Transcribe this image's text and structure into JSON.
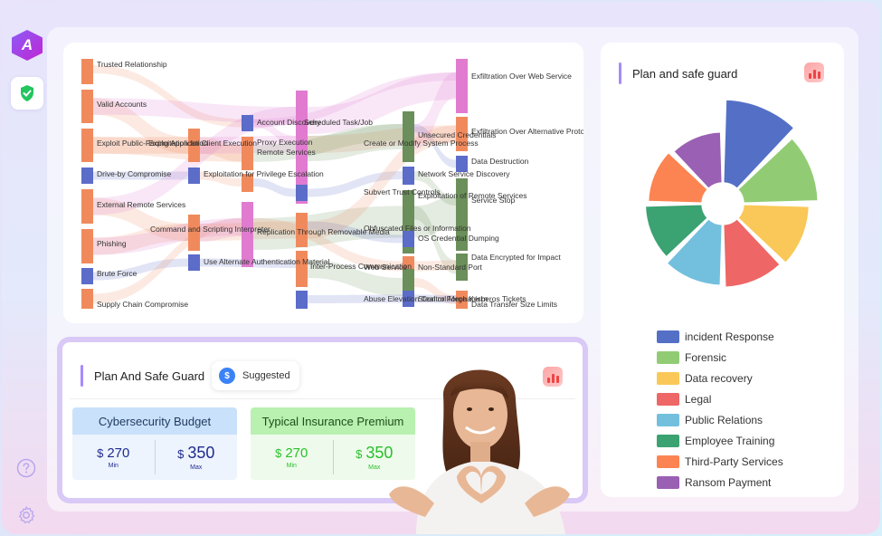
{
  "sidebar": {
    "logo_text": "A",
    "items": [
      {
        "icon": "shield-check-icon"
      },
      {
        "icon": "help-icon"
      },
      {
        "icon": "gear-icon"
      }
    ]
  },
  "sankey": {
    "nodes": [
      {
        "label": "Trusted Relationship",
        "color": "#f08a5d"
      },
      {
        "label": "Valid Accounts",
        "color": "#f08a5d"
      },
      {
        "label": "Exploit Public-Facing Application",
        "color": "#f08a5d"
      },
      {
        "label": "Drive-by Compromise",
        "color": "#5b6cc9"
      },
      {
        "label": "External Remote Services",
        "color": "#f08a5d"
      },
      {
        "label": "Phishing",
        "color": "#f08a5d"
      },
      {
        "label": "Brute Force",
        "color": "#5b6cc9"
      },
      {
        "label": "Supply Chain Compromise",
        "color": "#f08a5d"
      },
      {
        "label": "Exploitation for Client Execution",
        "color": "#f08a5d"
      },
      {
        "label": "Exploitation for Privilege Escalation",
        "color": "#5b6cc9"
      },
      {
        "label": "Command and Scripting Interpreter",
        "color": "#f08a5d"
      },
      {
        "label": "Use Alternate Authentication Material",
        "color": "#5b6cc9"
      },
      {
        "label": "Account Discovery",
        "color": "#5b6cc9"
      },
      {
        "label": "Proxy Execution",
        "color": "#f08a5d"
      },
      {
        "label": "Remote Services",
        "color": "#f08a5d"
      },
      {
        "label": "Replication Through Removable Media",
        "color": "#e07bd0"
      },
      {
        "label": "Scheduled Task/Job",
        "color": "#e07bd0"
      },
      {
        "label": "Create or Modify System Process",
        "color": "#e07bd0"
      },
      {
        "label": "Subvert Trust Controls",
        "color": "#5b6cc9"
      },
      {
        "label": "Obfuscated Files or Information",
        "color": "#f08a5d"
      },
      {
        "label": "Inter-Process Communication",
        "color": "#f08a5d"
      },
      {
        "label": "Abuse Elevation Control Mechanism",
        "color": "#5b6cc9"
      },
      {
        "label": "Unsecured Credentials",
        "color": "#6b8f5a"
      },
      {
        "label": "Network Service Discovery",
        "color": "#5b6cc9"
      },
      {
        "label": "Exploitation of Remote Services",
        "color": "#6b8f5a"
      },
      {
        "label": "OS Credential Dumping",
        "color": "#5b6cc9"
      },
      {
        "label": "Web Service",
        "color": "#f08a5d"
      },
      {
        "label": "Non-Standard Port",
        "color": "#6b8f5a"
      },
      {
        "label": "Steal or Forge Kerberos Tickets",
        "color": "#5b6cc9"
      },
      {
        "label": "Exfiltration Over Web Service",
        "color": "#e07bd0"
      },
      {
        "label": "Exfiltration Over Alternative Protocol",
        "color": "#f08a5d"
      },
      {
        "label": "Data Destruction",
        "color": "#5b6cc9"
      },
      {
        "label": "Service Stop",
        "color": "#6b8f5a"
      },
      {
        "label": "Data Encrypted for Impact",
        "color": "#6b8f5a"
      },
      {
        "label": "Data Transfer Size Limits",
        "color": "#f08a5d"
      }
    ]
  },
  "bottom_card": {
    "title": "Plan And Safe Guard",
    "suggested_label": "Suggested",
    "suggested_icon": "dollar-icon",
    "budget": {
      "title": "Cybersecurity Budget",
      "currency": "$",
      "min_value": "270",
      "min_label": "Min",
      "max_value": "350",
      "max_label": "Max"
    },
    "premium": {
      "title": "Typical Insurance Premium",
      "currency": "$",
      "min_value": "270",
      "min_label": "Min",
      "max_value": "350",
      "max_label": "Max"
    }
  },
  "right_card": {
    "title": "Plan and safe guard",
    "legend": [
      {
        "label": "incident Response",
        "color": "#5470c6"
      },
      {
        "label": "Forensic",
        "color": "#91cc75"
      },
      {
        "label": "Data recovery",
        "color": "#fac858"
      },
      {
        "label": "Legal",
        "color": "#ee6666"
      },
      {
        "label": "Public Relations",
        "color": "#73c0de"
      },
      {
        "label": "Employee Training",
        "color": "#3ba272"
      },
      {
        "label": "Third-Party Services",
        "color": "#fc8452"
      },
      {
        "label": "Ransom Payment",
        "color": "#9a60b4"
      }
    ]
  },
  "chart_data": {
    "type": "pie",
    "categories": [
      "incident Response",
      "Forensic",
      "Data recovery",
      "Legal",
      "Public Relations",
      "Employee Training",
      "Third-Party Services",
      "Ransom Payment"
    ],
    "values": [
      100,
      85,
      70,
      65,
      62,
      55,
      50,
      45
    ],
    "colors": [
      "#5470c6",
      "#91cc75",
      "#fac858",
      "#ee6666",
      "#73c0de",
      "#3ba272",
      "#fc8452",
      "#9a60b4"
    ],
    "legend": "bottom"
  }
}
